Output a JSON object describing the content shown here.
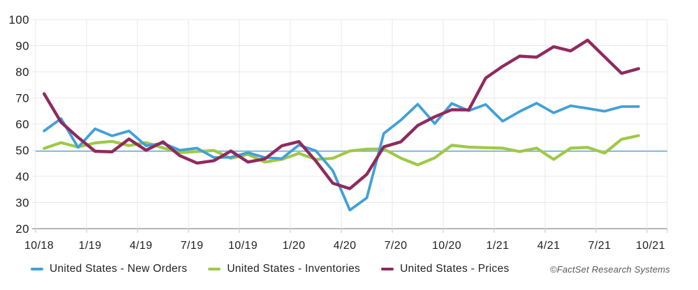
{
  "credit": "©FactSet Research Systems",
  "chart_data": {
    "type": "line",
    "title": "",
    "xlabel": "",
    "ylabel": "",
    "ylim": [
      20,
      100
    ],
    "y_ticks": [
      20,
      30,
      40,
      50,
      60,
      70,
      80,
      90,
      100
    ],
    "x": [
      "10/18",
      "11/18",
      "12/18",
      "1/19",
      "2/19",
      "3/19",
      "4/19",
      "5/19",
      "6/19",
      "7/19",
      "8/19",
      "9/19",
      "10/19",
      "11/19",
      "12/19",
      "1/20",
      "2/20",
      "3/20",
      "4/20",
      "5/20",
      "6/20",
      "7/20",
      "8/20",
      "9/20",
      "10/20",
      "11/20",
      "12/20",
      "1/21",
      "2/21",
      "3/21",
      "4/21",
      "5/21",
      "6/21",
      "7/21",
      "8/21",
      "9/21"
    ],
    "x_tick_labels": [
      "10/18",
      "1/19",
      "4/19",
      "7/19",
      "10/19",
      "1/20",
      "4/20",
      "7/20",
      "10/20",
      "1/21",
      "4/21",
      "7/21",
      "10/21"
    ],
    "x_tick_month_offsets": [
      0,
      3,
      6,
      9,
      12,
      15,
      18,
      21,
      24,
      27,
      30,
      33,
      36
    ],
    "grid": true,
    "legend_position": "bottom-left",
    "reference_line": {
      "value": 50,
      "color": "#58b0e3"
    },
    "series": [
      {
        "name": "United States - New Orders",
        "color": "#41a0da",
        "values": [
          57.4,
          62.1,
          51.1,
          58.2,
          55.5,
          57.4,
          51.7,
          52.7,
          50.0,
          50.8,
          47.2,
          47.3,
          49.1,
          47.2,
          46.8,
          52.0,
          49.8,
          42.2,
          27.1,
          31.8,
          56.4,
          61.5,
          67.6,
          60.2,
          67.9,
          65.1,
          67.5,
          61.1,
          64.8,
          68.0,
          64.3,
          67.0,
          66.0,
          64.9,
          66.7,
          66.7
        ]
      },
      {
        "name": "United States - Inventories",
        "color": "#a0c846",
        "values": [
          50.7,
          52.9,
          51.2,
          52.8,
          53.4,
          51.8,
          52.9,
          50.9,
          49.1,
          49.5,
          49.9,
          46.9,
          48.4,
          45.5,
          46.5,
          48.8,
          46.5,
          46.9,
          49.7,
          50.4,
          50.5,
          47.0,
          44.4,
          47.1,
          51.9,
          51.2,
          51.0,
          50.8,
          49.5,
          50.8,
          46.5,
          50.8,
          51.1,
          48.9,
          54.2,
          55.6
        ]
      },
      {
        "name": "United States - Prices",
        "color": "#8e2a5e",
        "values": [
          71.6,
          60.7,
          54.9,
          49.6,
          49.4,
          54.3,
          50.0,
          53.2,
          47.9,
          45.1,
          46.0,
          49.7,
          45.5,
          46.7,
          51.7,
          53.3,
          45.9,
          37.4,
          35.3,
          40.8,
          51.3,
          53.2,
          59.5,
          62.8,
          65.5,
          65.4,
          77.6,
          82.1,
          86.0,
          85.6,
          89.6,
          88.0,
          92.1,
          85.7,
          79.4,
          81.2
        ]
      }
    ],
    "style": {
      "grid_color": "#e8e8e8",
      "axis_line_color": "#9e9e9e",
      "tick_color": "#c4c4c4",
      "label_color": "#1f1f1f"
    }
  }
}
